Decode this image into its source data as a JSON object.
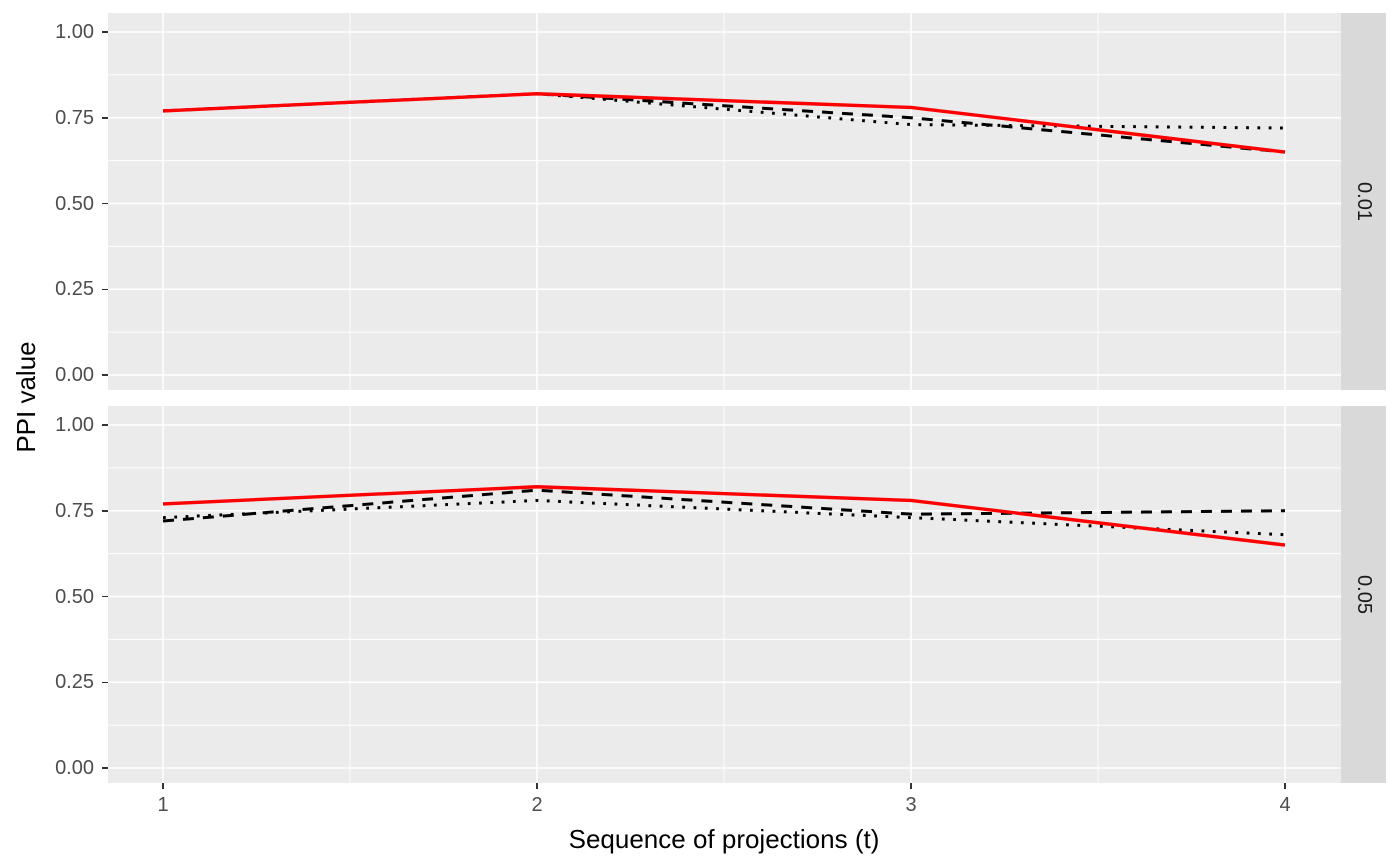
{
  "figure": {
    "y_axis_title": "PPI value",
    "x_axis_title": "Sequence of projections (t)",
    "y_tick_labels": [
      "1.00",
      "0.75",
      "0.50",
      "0.25",
      "0.00"
    ],
    "y_tick_values": [
      1.0,
      0.75,
      0.5,
      0.25,
      0.0
    ],
    "x_tick_labels": [
      "1",
      "2",
      "3",
      "4"
    ],
    "x_tick_values": [
      1,
      2,
      3,
      4
    ],
    "facet_strip_labels": [
      "0.01",
      "0.05"
    ],
    "colors": {
      "panel_background": "#EBEBEB",
      "strip_background": "#D9D9D9",
      "gridline": "#FFFFFF",
      "red_line": "#FF0000",
      "black_line": "#000000",
      "tick_text": "#4D4D4D",
      "tick_mark": "#333333",
      "title_text": "#000000",
      "strip_text": "#1A1A1A"
    }
  },
  "chart_data": {
    "type": "line",
    "title": "",
    "xlabel": "Sequence of projections (t)",
    "ylabel": "PPI value",
    "x": [
      1,
      2,
      3,
      4
    ],
    "y_ticks": [
      0.0,
      0.25,
      0.5,
      0.75,
      1.0
    ],
    "ylim": [
      0,
      1.05
    ],
    "xlim": [
      0.85,
      4.15
    ],
    "grid": "major-and-minor, white on gray panel",
    "legend": "none",
    "facet_layout": "rows-right-strips",
    "facets": [
      {
        "label": "0.01",
        "series": [
          {
            "name": "solid-red",
            "linetype": "solid",
            "color": "#FF0000",
            "values": [
              0.77,
              0.82,
              0.78,
              0.65
            ]
          },
          {
            "name": "dashed-black",
            "linetype": "dashed",
            "color": "#000000",
            "values": [
              0.77,
              0.82,
              0.75,
              0.65
            ]
          },
          {
            "name": "dotted-black",
            "linetype": "dotted",
            "color": "#000000",
            "values": [
              0.77,
              0.82,
              0.73,
              0.72
            ]
          }
        ]
      },
      {
        "label": "0.05",
        "series": [
          {
            "name": "solid-red",
            "linetype": "solid",
            "color": "#FF0000",
            "values": [
              0.77,
              0.82,
              0.78,
              0.65
            ]
          },
          {
            "name": "dashed-black",
            "linetype": "dashed",
            "color": "#000000",
            "values": [
              0.72,
              0.81,
              0.74,
              0.75
            ]
          },
          {
            "name": "dotted-black",
            "linetype": "dotted",
            "color": "#000000",
            "values": [
              0.73,
              0.78,
              0.73,
              0.68
            ]
          }
        ]
      }
    ]
  }
}
